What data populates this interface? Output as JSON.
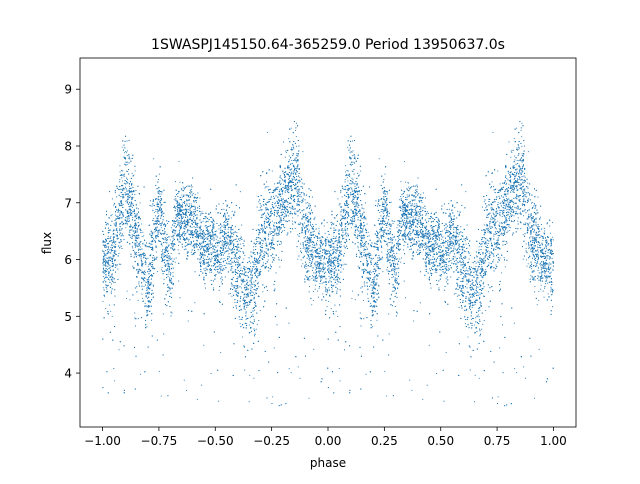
{
  "chart_data": {
    "type": "scatter",
    "title": "1SWASPJ145150.64-365259.0 Period 13950637.0s",
    "xlabel": "phase",
    "ylabel": "flux",
    "xlim": [
      -1.1,
      1.1
    ],
    "ylim": [
      3.05,
      9.55
    ],
    "x_ticks": [
      -1.0,
      -0.75,
      -0.5,
      -0.25,
      0.0,
      0.25,
      0.5,
      0.75,
      1.0
    ],
    "x_tick_labels": [
      "−1.00",
      "−0.75",
      "−0.50",
      "−0.25",
      "0.00",
      "0.25",
      "0.50",
      "0.75",
      "1.00"
    ],
    "y_ticks": [
      4,
      5,
      6,
      7,
      8,
      9
    ],
    "y_tick_labels": [
      "4",
      "5",
      "6",
      "7",
      "8",
      "9"
    ],
    "grid": false,
    "legend": "none",
    "marker_color": "#1f77b4",
    "note_on_density": "Phase-folded light curve; the same curve repeats for phase -1..0 and 0..1. The binned profile below describes the median flux and scatter of the dense point cloud.",
    "profile": {
      "phase": [
        0.0,
        0.025,
        0.05,
        0.075,
        0.1,
        0.125,
        0.15,
        0.175,
        0.2,
        0.225,
        0.25,
        0.275,
        0.3,
        0.325,
        0.35,
        0.375,
        0.4,
        0.425,
        0.45,
        0.475,
        0.5,
        0.525,
        0.55,
        0.575,
        0.6,
        0.625,
        0.65,
        0.675,
        0.7,
        0.725,
        0.75,
        0.775,
        0.8,
        0.825,
        0.85,
        0.875,
        0.9,
        0.925,
        0.95,
        0.975,
        1.0
      ],
      "median_flux": [
        5.9,
        5.95,
        6.2,
        6.7,
        7.3,
        7.0,
        6.4,
        6.0,
        5.4,
        6.3,
        6.8,
        6.2,
        5.6,
        6.8,
        6.7,
        6.6,
        6.7,
        6.4,
        6.2,
        6.3,
        6.2,
        6.1,
        6.4,
        6.1,
        5.8,
        5.6,
        5.4,
        5.6,
        6.3,
        6.5,
        6.6,
        6.7,
        7.0,
        7.3,
        7.5,
        7.0,
        6.4,
        6.2,
        6.1,
        5.9,
        5.9
      ],
      "scatter": [
        0.35,
        0.4,
        0.4,
        0.45,
        0.4,
        0.45,
        0.45,
        0.4,
        0.45,
        0.45,
        0.4,
        0.4,
        0.4,
        0.3,
        0.3,
        0.3,
        0.3,
        0.3,
        0.3,
        0.3,
        0.3,
        0.35,
        0.35,
        0.4,
        0.4,
        0.45,
        0.45,
        0.45,
        0.45,
        0.45,
        0.45,
        0.4,
        0.4,
        0.45,
        0.45,
        0.45,
        0.4,
        0.4,
        0.35,
        0.35,
        0.35
      ]
    }
  }
}
